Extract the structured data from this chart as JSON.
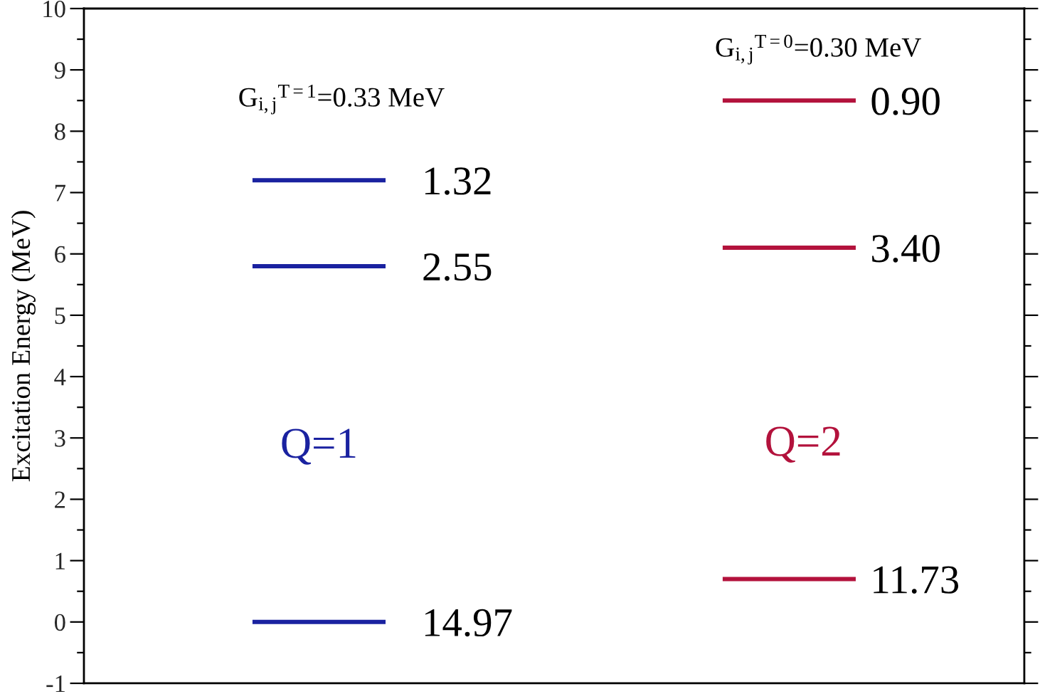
{
  "chart_data": {
    "type": "bar",
    "ylabel": "Excitation Energy (MeV)",
    "categories": [
      null,
      null
    ],
    "series": [
      {
        "colors": [
          "#1a22a0",
          "#b3123c"
        ],
        "base": [
          7.2,
          8.5
        ],
        "values": [
          0,
          0
        ]
      },
      {
        "colors": [
          "#1a22a0",
          "#b3123c"
        ],
        "base": [
          5.8,
          6.1
        ],
        "values": [
          0,
          0
        ]
      },
      {
        "colors": [
          "#1a22a0",
          "#b3123c"
        ],
        "base": [
          0.0,
          0.7
        ],
        "values": [
          0,
          0
        ]
      }
    ],
    "ylim": [
      -1,
      10
    ],
    "yticks": [
      -1,
      0,
      1,
      2,
      3,
      4,
      5,
      6,
      7,
      8,
      9,
      10
    ],
    "tick_labels": "y",
    "annotations": [
      "G$_{i,j}$$^{T=1}$=0.33 MeV",
      "G$_{i,j}$$^{T=0}$=0.30 MeV",
      "1.32",
      "2.55",
      "14.97",
      "0.90",
      "3.40",
      "11.73",
      "Q=1",
      "Q=2"
    ]
  }
}
